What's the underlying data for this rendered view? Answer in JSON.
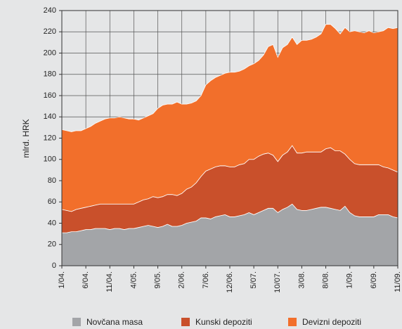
{
  "chart_data": {
    "type": "stacked_area",
    "ylabel": "mlrd. HRK",
    "categories": [
      "1/04.",
      null,
      null,
      null,
      null,
      "6/04.",
      null,
      null,
      null,
      null,
      "11/04.",
      null,
      null,
      null,
      null,
      "4/05.",
      null,
      null,
      null,
      null,
      "9/05.",
      null,
      null,
      null,
      null,
      "2/06.",
      null,
      null,
      null,
      null,
      "7/06.",
      null,
      null,
      null,
      null,
      "12/06.",
      null,
      null,
      null,
      null,
      "5/07.",
      null,
      null,
      null,
      null,
      "10/07.",
      null,
      null,
      null,
      null,
      "3/08.",
      null,
      null,
      null,
      null,
      "8/08.",
      null,
      null,
      null,
      null,
      "1/09.",
      null,
      null,
      null,
      null,
      "6/09.",
      null,
      null,
      null,
      null,
      "11/09."
    ],
    "series": [
      {
        "name": "Novčana masa",
        "color": "#a3a5a8",
        "values": [
          31,
          31,
          32,
          32,
          33,
          34,
          34,
          35,
          35,
          35,
          34,
          35,
          35,
          34,
          35,
          35,
          36,
          37,
          38,
          37,
          36,
          37,
          39,
          37,
          37,
          38,
          40,
          41,
          42,
          45,
          45,
          44,
          46,
          47,
          48,
          46,
          46,
          47,
          48,
          50,
          48,
          50,
          52,
          54,
          54,
          50,
          53,
          55,
          58,
          53,
          52,
          52,
          53,
          54,
          55,
          55,
          54,
          53,
          52,
          56,
          50,
          47,
          46,
          46,
          46,
          46,
          48,
          48,
          48,
          46,
          45
        ]
      },
      {
        "name": "Kunski depoziti",
        "color": "#c9502b",
        "values": [
          22,
          21,
          19,
          21,
          21,
          21,
          22,
          22,
          23,
          23,
          24,
          23,
          23,
          24,
          23,
          23,
          24,
          25,
          25,
          28,
          28,
          28,
          28,
          30,
          29,
          30,
          32,
          33,
          36,
          39,
          44,
          47,
          47,
          47,
          46,
          47,
          47,
          48,
          48,
          50,
          52,
          53,
          53,
          52,
          50,
          48,
          51,
          52,
          55,
          53,
          54,
          55,
          54,
          53,
          52,
          55,
          57,
          55,
          56,
          49,
          50,
          49,
          49,
          49,
          49,
          49,
          47,
          45,
          44,
          44,
          43
        ]
      },
      {
        "name": "Devizni depoziti",
        "color": "#f26f2b",
        "values": [
          75,
          75,
          75,
          74,
          73,
          74,
          75,
          77,
          78,
          80,
          81,
          81,
          82,
          81,
          80,
          80,
          77,
          77,
          78,
          78,
          84,
          86,
          85,
          85,
          88,
          84,
          80,
          79,
          77,
          76,
          81,
          83,
          84,
          85,
          87,
          89,
          89,
          88,
          89,
          88,
          90,
          90,
          93,
          100,
          104,
          98,
          101,
          101,
          102,
          102,
          106,
          105,
          106,
          108,
          111,
          117,
          116,
          115,
          110,
          119,
          120,
          125,
          125,
          124,
          126,
          124,
          125,
          128,
          132,
          133,
          136
        ]
      }
    ],
    "ylim": [
      0,
      240
    ],
    "yticks": [
      0,
      20,
      40,
      60,
      80,
      100,
      120,
      140,
      160,
      180,
      200,
      220,
      240
    ],
    "grid": true
  }
}
